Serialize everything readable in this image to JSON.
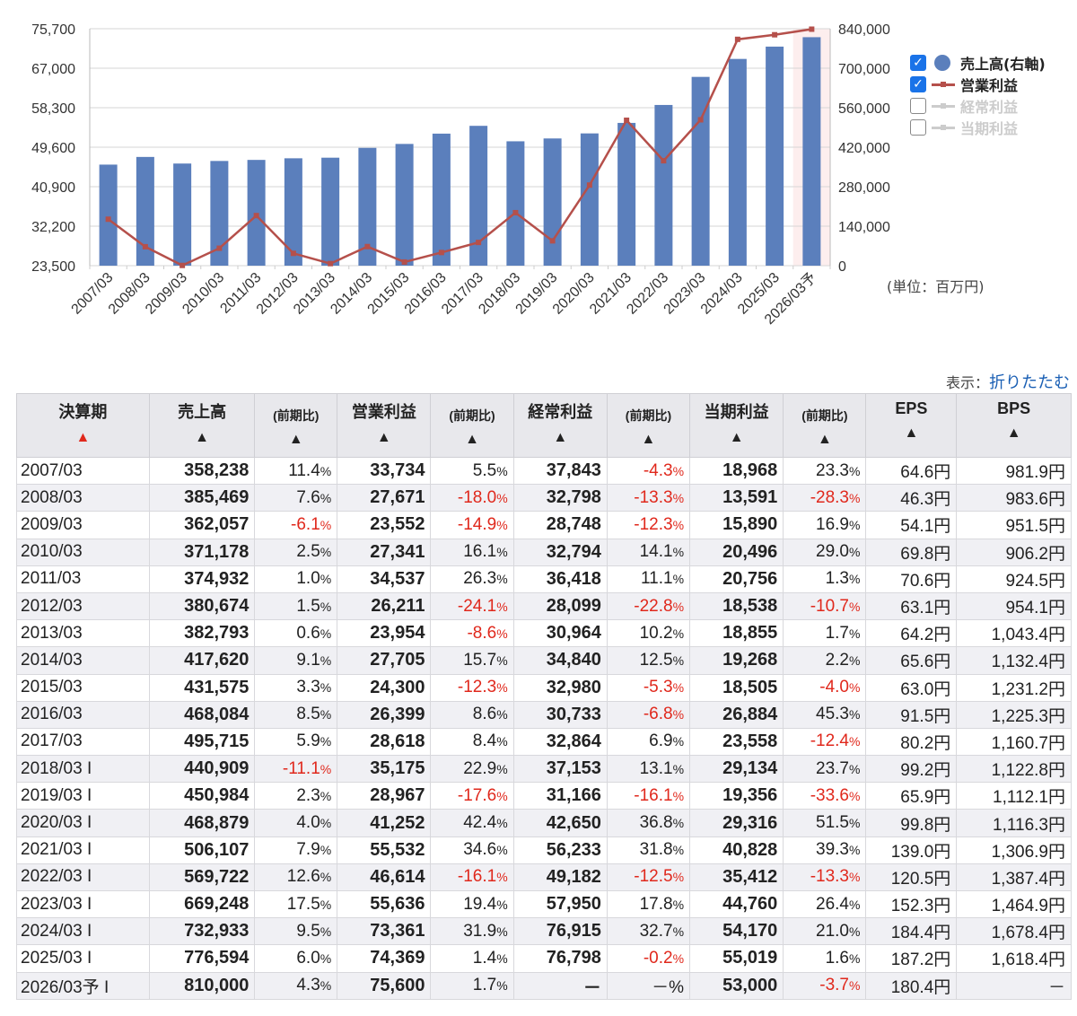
{
  "chart_data": {
    "type": "bar",
    "categories": [
      "2007/03",
      "2008/03",
      "2009/03",
      "2010/03",
      "2011/03",
      "2012/03",
      "2013/03",
      "2014/03",
      "2015/03",
      "2016/03",
      "2017/03",
      "2018/03",
      "2019/03",
      "2020/03",
      "2021/03",
      "2022/03",
      "2023/03",
      "2024/03",
      "2025/03",
      "2026/03予"
    ],
    "series": [
      {
        "name": "売上高(右軸)",
        "type": "bar",
        "axis": "right",
        "color": "#5b7fbc",
        "values": [
          358238,
          385469,
          362057,
          371178,
          374932,
          380674,
          382793,
          417620,
          431575,
          468084,
          495715,
          440909,
          450984,
          468879,
          506107,
          569722,
          669248,
          732933,
          776594,
          810000
        ]
      },
      {
        "name": "営業利益",
        "type": "line",
        "axis": "left",
        "color": "#b5504b",
        "values": [
          33734,
          27671,
          23552,
          27341,
          34537,
          26211,
          23954,
          27705,
          24300,
          26399,
          28618,
          35175,
          28967,
          41252,
          55532,
          46614,
          55636,
          73361,
          74369,
          75600
        ]
      }
    ],
    "left_axis": {
      "ticks": [
        "23,500",
        "32,200",
        "40,900",
        "49,600",
        "58,300",
        "67,000",
        "75,700"
      ],
      "min": 23500,
      "max": 75700
    },
    "right_axis": {
      "ticks": [
        "0",
        "140,000",
        "280,000",
        "420,000",
        "560,000",
        "700,000",
        "840,000"
      ],
      "min": 0,
      "max": 840000
    },
    "legend": [
      {
        "label": "売上高(右軸)",
        "checked": true,
        "symbol": "dot"
      },
      {
        "label": "営業利益",
        "checked": true,
        "symbol": "line"
      },
      {
        "label": "経常利益",
        "checked": false,
        "symbol": "line"
      },
      {
        "label": "当期利益",
        "checked": false,
        "symbol": "line"
      }
    ],
    "legend_position": "right",
    "unit": "(単位：百万円)",
    "grid": true
  },
  "display": {
    "label": "表示：",
    "fold": "折りたたむ"
  },
  "table": {
    "headers": [
      {
        "label": "決算期",
        "arrow": "▲",
        "red": true
      },
      {
        "label": "売上高",
        "arrow": "▲"
      },
      {
        "label": "(前期比)",
        "arrow": "▲",
        "small": true
      },
      {
        "label": "営業利益",
        "arrow": "▲"
      },
      {
        "label": "(前期比)",
        "arrow": "▲",
        "small": true
      },
      {
        "label": "経常利益",
        "arrow": "▲"
      },
      {
        "label": "(前期比)",
        "arrow": "▲",
        "small": true
      },
      {
        "label": "当期利益",
        "arrow": "▲"
      },
      {
        "label": "(前期比)",
        "arrow": "▲",
        "small": true
      },
      {
        "label": "EPS",
        "arrow": "▲"
      },
      {
        "label": "BPS",
        "arrow": "▲"
      }
    ],
    "rows": [
      [
        "2007/03",
        "358,238",
        "11.4",
        "33,734",
        "5.5",
        "37,843",
        "-4.3",
        "18,968",
        "23.3",
        "64.6円",
        "981.9円"
      ],
      [
        "2008/03",
        "385,469",
        "7.6",
        "27,671",
        "-18.0",
        "32,798",
        "-13.3",
        "13,591",
        "-28.3",
        "46.3円",
        "983.6円"
      ],
      [
        "2009/03",
        "362,057",
        "-6.1",
        "23,552",
        "-14.9",
        "28,748",
        "-12.3",
        "15,890",
        "16.9",
        "54.1円",
        "951.5円"
      ],
      [
        "2010/03",
        "371,178",
        "2.5",
        "27,341",
        "16.1",
        "32,794",
        "14.1",
        "20,496",
        "29.0",
        "69.8円",
        "906.2円"
      ],
      [
        "2011/03",
        "374,932",
        "1.0",
        "34,537",
        "26.3",
        "36,418",
        "11.1",
        "20,756",
        "1.3",
        "70.6円",
        "924.5円"
      ],
      [
        "2012/03",
        "380,674",
        "1.5",
        "26,211",
        "-24.1",
        "28,099",
        "-22.8",
        "18,538",
        "-10.7",
        "63.1円",
        "954.1円"
      ],
      [
        "2013/03",
        "382,793",
        "0.6",
        "23,954",
        "-8.6",
        "30,964",
        "10.2",
        "18,855",
        "1.7",
        "64.2円",
        "1,043.4円"
      ],
      [
        "2014/03",
        "417,620",
        "9.1",
        "27,705",
        "15.7",
        "34,840",
        "12.5",
        "19,268",
        "2.2",
        "65.6円",
        "1,132.4円"
      ],
      [
        "2015/03",
        "431,575",
        "3.3",
        "24,300",
        "-12.3",
        "32,980",
        "-5.3",
        "18,505",
        "-4.0",
        "63.0円",
        "1,231.2円"
      ],
      [
        "2016/03",
        "468,084",
        "8.5",
        "26,399",
        "8.6",
        "30,733",
        "-6.8",
        "26,884",
        "45.3",
        "91.5円",
        "1,225.3円"
      ],
      [
        "2017/03",
        "495,715",
        "5.9",
        "28,618",
        "8.4",
        "32,864",
        "6.9",
        "23,558",
        "-12.4",
        "80.2円",
        "1,160.7円"
      ],
      [
        "2018/03 I",
        "440,909",
        "-11.1",
        "35,175",
        "22.9",
        "37,153",
        "13.1",
        "29,134",
        "23.7",
        "99.2円",
        "1,122.8円"
      ],
      [
        "2019/03 I",
        "450,984",
        "2.3",
        "28,967",
        "-17.6",
        "31,166",
        "-16.1",
        "19,356",
        "-33.6",
        "65.9円",
        "1,112.1円"
      ],
      [
        "2020/03 I",
        "468,879",
        "4.0",
        "41,252",
        "42.4",
        "42,650",
        "36.8",
        "29,316",
        "51.5",
        "99.8円",
        "1,116.3円"
      ],
      [
        "2021/03 I",
        "506,107",
        "7.9",
        "55,532",
        "34.6",
        "56,233",
        "31.8",
        "40,828",
        "39.3",
        "139.0円",
        "1,306.9円"
      ],
      [
        "2022/03 I",
        "569,722",
        "12.6",
        "46,614",
        "-16.1",
        "49,182",
        "-12.5",
        "35,412",
        "-13.3",
        "120.5円",
        "1,387.4円"
      ],
      [
        "2023/03 I",
        "669,248",
        "17.5",
        "55,636",
        "19.4",
        "57,950",
        "17.8",
        "44,760",
        "26.4",
        "152.3円",
        "1,464.9円"
      ],
      [
        "2024/03 I",
        "732,933",
        "9.5",
        "73,361",
        "31.9",
        "76,915",
        "32.7",
        "54,170",
        "21.0",
        "184.4円",
        "1,678.4円"
      ],
      [
        "2025/03 I",
        "776,594",
        "6.0",
        "74,369",
        "1.4",
        "76,798",
        "-0.2",
        "55,019",
        "1.6",
        "187.2円",
        "1,618.4円"
      ],
      [
        "2026/03予 I",
        "810,000",
        "4.3",
        "75,600",
        "1.7",
        "－",
        "－",
        "53,000",
        "-3.7",
        "180.4円",
        "－"
      ]
    ]
  }
}
